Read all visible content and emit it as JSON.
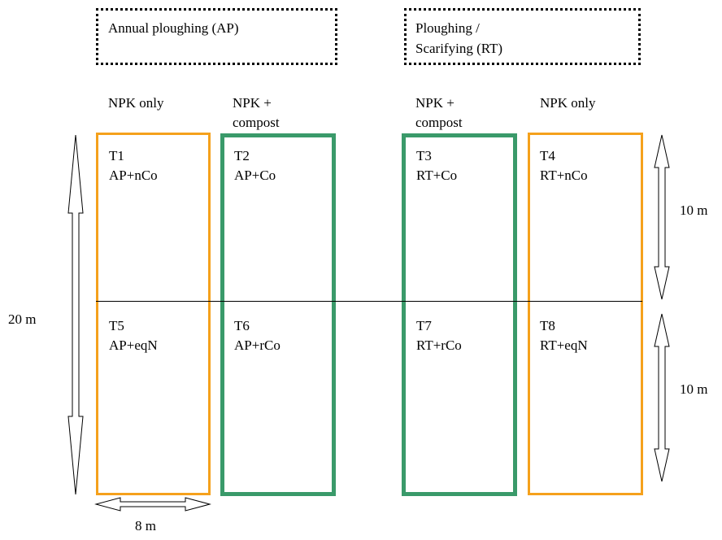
{
  "groups": {
    "ap": {
      "title": "Annual ploughing (AP)"
    },
    "rt": {
      "title_line1": "Ploughing /",
      "title_line2": "Scarifying (RT)"
    }
  },
  "columns": {
    "col1": {
      "line1": "NPK only",
      "line2": ""
    },
    "col2": {
      "line1": "NPK +",
      "line2": "compost"
    },
    "col3": {
      "line1": "NPK +",
      "line2": "compost"
    },
    "col4": {
      "line1": "NPK only",
      "line2": ""
    }
  },
  "plots": {
    "t1": {
      "id": "T1",
      "label": "AP+nCo"
    },
    "t2": {
      "id": "T2",
      "label": "AP+Co"
    },
    "t3": {
      "id": "T3",
      "label": "RT+Co"
    },
    "t4": {
      "id": "T4",
      "label": "RT+nCo"
    },
    "t5": {
      "id": "T5",
      "label": "AP+eqN"
    },
    "t6": {
      "id": "T6",
      "label": "AP+rCo"
    },
    "t7": {
      "id": "T7",
      "label": "RT+rCo"
    },
    "t8": {
      "id": "T8",
      "label": "RT+eqN"
    }
  },
  "dimensions": {
    "total_length": "20 m",
    "half_length_top": "10 m",
    "half_length_bottom": "10 m",
    "width": "8 m"
  },
  "colors": {
    "npk_only": "#f5a11c",
    "npk_compost": "#3a9a6a"
  }
}
